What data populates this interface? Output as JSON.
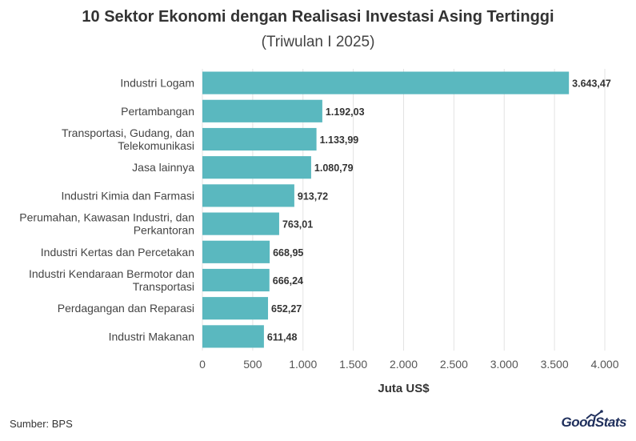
{
  "header": {
    "title": "10 Sektor Ekonomi dengan Realisasi Investasi Asing Tertinggi",
    "subtitle": "(Triwulan I 2025)"
  },
  "footer": {
    "source": "Sumber: BPS",
    "logo_text": "GoodStats"
  },
  "colors": {
    "bar": "#5ab8bf",
    "grid": "#e3e3e3",
    "text": "#333333"
  },
  "chart_data": {
    "type": "bar",
    "orientation": "horizontal",
    "title": "10 Sektor Ekonomi dengan Realisasi Investasi Asing Tertinggi",
    "subtitle": "(Triwulan I 2025)",
    "xlabel": "Juta US$",
    "ylabel": "",
    "xlim": [
      0,
      4000
    ],
    "ticks": [
      0,
      500,
      1000,
      1500,
      2000,
      2500,
      3000,
      3500,
      4000
    ],
    "tick_labels": [
      "0",
      "500",
      "1.000",
      "1.500",
      "2.000",
      "2.500",
      "3.000",
      "3.500",
      "4.000"
    ],
    "grid": true,
    "categories": [
      [
        "Industri Logam"
      ],
      [
        "Pertambangan"
      ],
      [
        "Transportasi, Gudang, dan",
        "Telekomunikasi"
      ],
      [
        "Jasa lainnya"
      ],
      [
        "Industri Kimia dan Farmasi"
      ],
      [
        "Perumahan, Kawasan Industri, dan",
        "Perkantoran"
      ],
      [
        "Industri Kertas dan Percetakan"
      ],
      [
        "Industri Kendaraan Bermotor dan",
        "Transportasi"
      ],
      [
        "Perdagangan dan Reparasi"
      ],
      [
        "Industri Makanan"
      ]
    ],
    "values": [
      3643.47,
      1192.03,
      1133.99,
      1080.79,
      913.72,
      763.01,
      668.95,
      666.24,
      652.27,
      611.48
    ],
    "value_labels": [
      "3.643,47",
      "1.192,03",
      "1.133,99",
      "1.080,79",
      "913,72",
      "763,01",
      "668,95",
      "666,24",
      "652,27",
      "611,48"
    ]
  }
}
